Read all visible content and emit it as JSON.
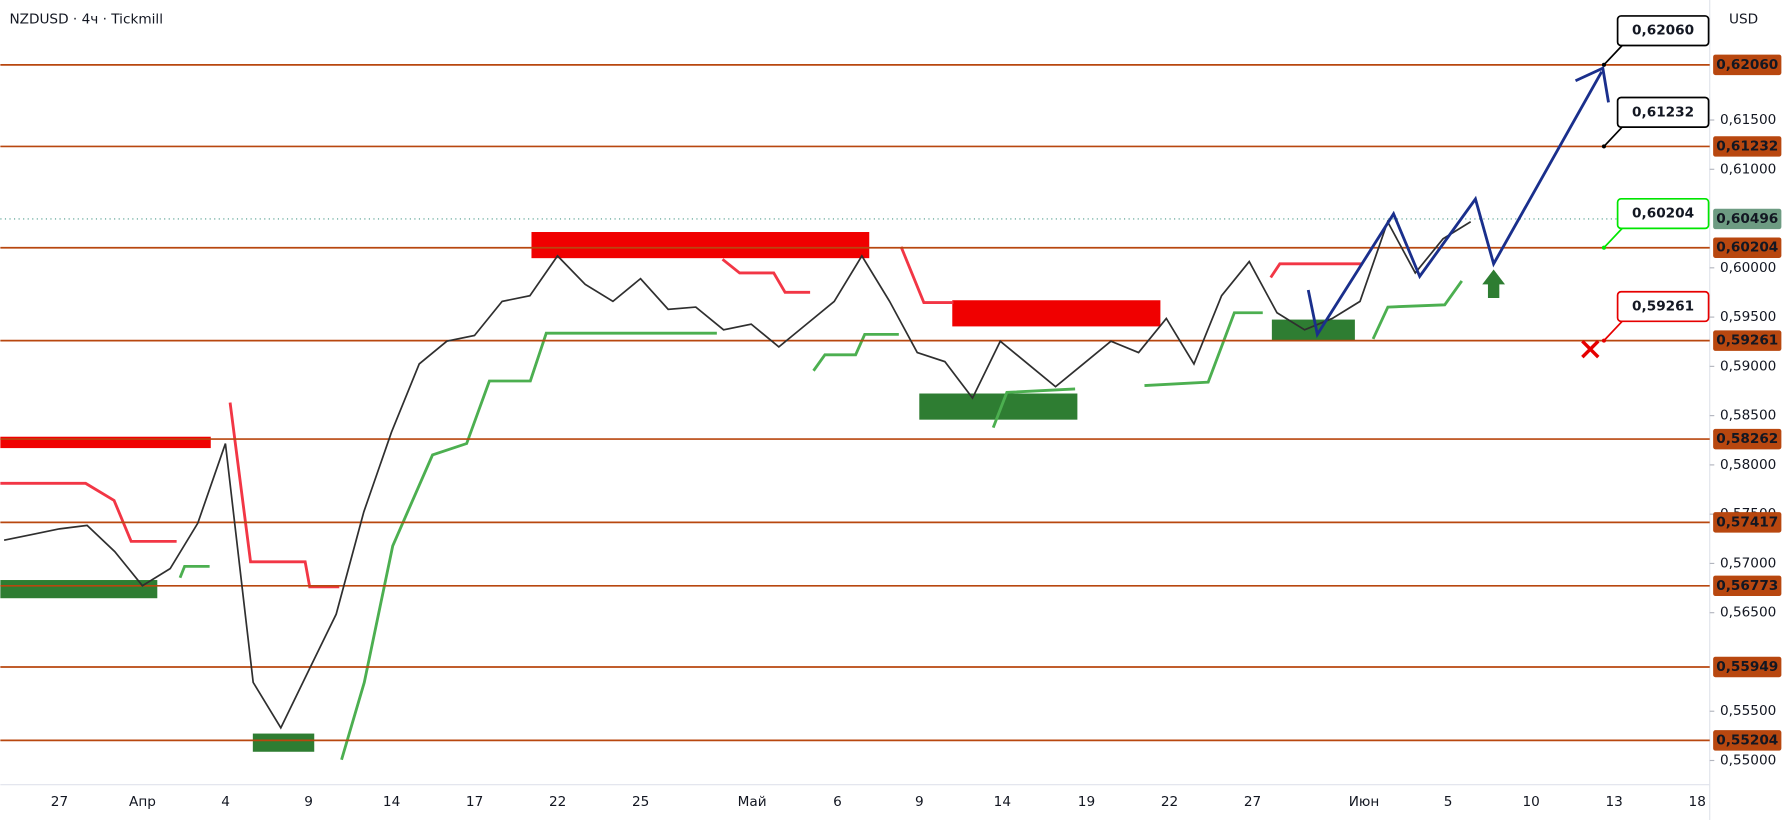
{
  "chart_data": {
    "type": "line",
    "title": "NZDUSD · 4ч · Tickmill",
    "currency": "USD",
    "x_axis_labels": [
      "27",
      "Апр",
      "4",
      "9",
      "14",
      "17",
      "22",
      "25",
      "Май",
      "6",
      "9",
      "14",
      "19",
      "22",
      "27",
      "Июн",
      "5",
      "10",
      "13",
      "18"
    ],
    "series": [
      {
        "name": "NZDUSD",
        "color": "#2f2f2f",
        "values": [
          0.57235,
          0.57293,
          0.57351,
          0.57386,
          0.5712,
          0.56774,
          0.56947,
          0.57409,
          0.58217,
          0.55793,
          0.55331,
          0.55908,
          0.56485,
          0.57524,
          0.58332,
          0.59024,
          0.59255,
          0.59313,
          0.59659,
          0.59717,
          0.60121,
          0.59832,
          0.59659,
          0.5989,
          0.59578,
          0.59602,
          0.59371,
          0.59428,
          0.59198,
          0.59428,
          0.59659,
          0.60121,
          0.59659,
          0.5914,
          0.59048,
          0.58678,
          0.59255,
          0.59024,
          0.58794,
          0.59024,
          0.59255,
          0.5914,
          0.59486,
          0.59024,
          0.59717,
          0.60063,
          0.59544,
          0.59371,
          0.59486,
          0.59659,
          0.60467,
          0.59948,
          0.60294,
          0.60467
        ]
      }
    ],
    "ylim": [
      0.54754,
      0.62718
    ],
    "yticks": [
      {
        "value": 0.615,
        "label": "0,61500"
      },
      {
        "value": 0.61,
        "label": "0,61000"
      },
      {
        "value": 0.6,
        "label": "0,60000"
      },
      {
        "value": 0.595,
        "label": "0,59500"
      },
      {
        "value": 0.59,
        "label": "0,59000"
      },
      {
        "value": 0.585,
        "label": "0,58500"
      },
      {
        "value": 0.58,
        "label": "0,58000"
      },
      {
        "value": 0.575,
        "label": "0,57500"
      },
      {
        "value": 0.57,
        "label": "0,57000"
      },
      {
        "value": 0.565,
        "label": "0,56500"
      },
      {
        "value": 0.555,
        "label": "0,55500"
      },
      {
        "value": 0.55,
        "label": "0,55000"
      }
    ],
    "levels": [
      {
        "value": 0.6206,
        "label": "0,62060"
      },
      {
        "value": 0.61232,
        "label": "0,61232"
      },
      {
        "value": 0.60204,
        "label": "0,60204"
      },
      {
        "value": 0.59261,
        "label": "0,59261"
      },
      {
        "value": 0.58262,
        "label": "0,58262"
      },
      {
        "value": 0.57417,
        "label": "0,57417"
      },
      {
        "value": 0.56773,
        "label": "0,56773"
      },
      {
        "value": 0.55949,
        "label": "0,55949"
      },
      {
        "value": 0.55204,
        "label": "0,55204"
      }
    ],
    "level_color": "#b8470f",
    "current_price": {
      "value": 0.60496,
      "label": "0,60496"
    },
    "callouts": [
      {
        "value": 0.6206,
        "label": "0,62060",
        "color": "#000000"
      },
      {
        "value": 0.61232,
        "label": "0,61232",
        "color": "#000000"
      },
      {
        "value": 0.60204,
        "label": "0,60204",
        "color": "#00e600"
      },
      {
        "value": 0.59261,
        "label": "0,59261",
        "color": "#e60000"
      }
    ]
  }
}
